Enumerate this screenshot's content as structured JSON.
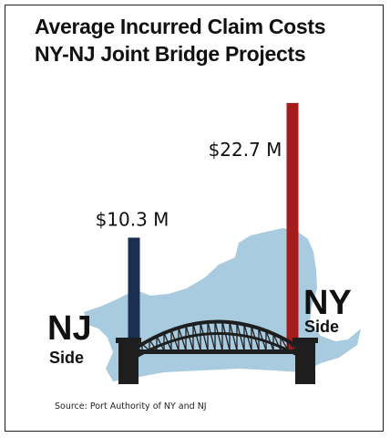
{
  "chart_data": {
    "type": "bar",
    "title": [
      "Average Incurred Claim Costs",
      "NY-NJ Joint Bridge Projects"
    ],
    "categories": [
      {
        "code": "NJ",
        "side": "Side"
      },
      {
        "code": "NY",
        "side": "Side"
      }
    ],
    "values": [
      10.3,
      22.7
    ],
    "value_labels": [
      "$10.3 M",
      "$22.7 M"
    ],
    "unit": "$ millions",
    "colors": [
      "#1a2f52",
      "#a41c1c"
    ],
    "ylim": [
      0,
      24
    ],
    "grid": false,
    "legend": "none"
  },
  "source": "Source: Port Authority of NY and NJ",
  "colors": {
    "map_fill": "#a9cbe0",
    "bridge": "#1e1e1e",
    "border": "#222222"
  }
}
